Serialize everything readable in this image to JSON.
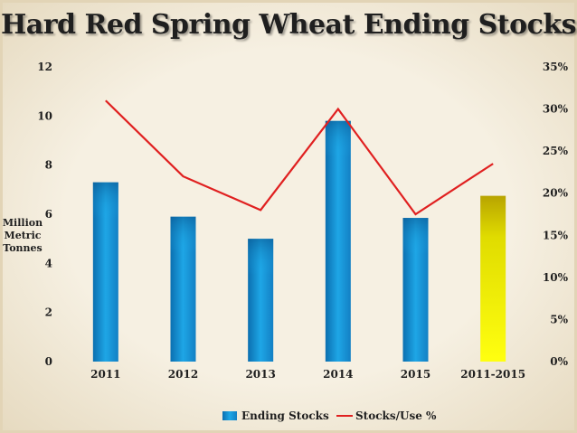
{
  "chart_data": {
    "type": "bar",
    "title": "Hard Red Spring Wheat Ending Stocks",
    "ylabel": "Million Metric Tonnes",
    "categories": [
      "2011",
      "2012",
      "2013",
      "2014",
      "2015",
      "2011-2015"
    ],
    "ylim": [
      0,
      12
    ],
    "y_ticks": [
      "0",
      "2",
      "4",
      "6",
      "8",
      "10",
      "12"
    ],
    "y2lim": [
      0,
      35
    ],
    "y2_ticks": [
      "0%",
      "5%",
      "10%",
      "15%",
      "20%",
      "25%",
      "30%",
      "35%"
    ],
    "grid": false,
    "legend_position": "bottom",
    "series": [
      {
        "name": "Ending Stocks",
        "type": "bar",
        "axis": "left",
        "values": [
          7.3,
          5.9,
          5.0,
          9.8,
          5.85,
          6.75
        ],
        "color": "#1a9bd8",
        "highlight_color": "#e8e800"
      },
      {
        "name": "Stocks/Use %",
        "type": "line",
        "axis": "right",
        "values": [
          31,
          22,
          18,
          30,
          17.5,
          23.5
        ],
        "color": "#e02020"
      }
    ]
  }
}
